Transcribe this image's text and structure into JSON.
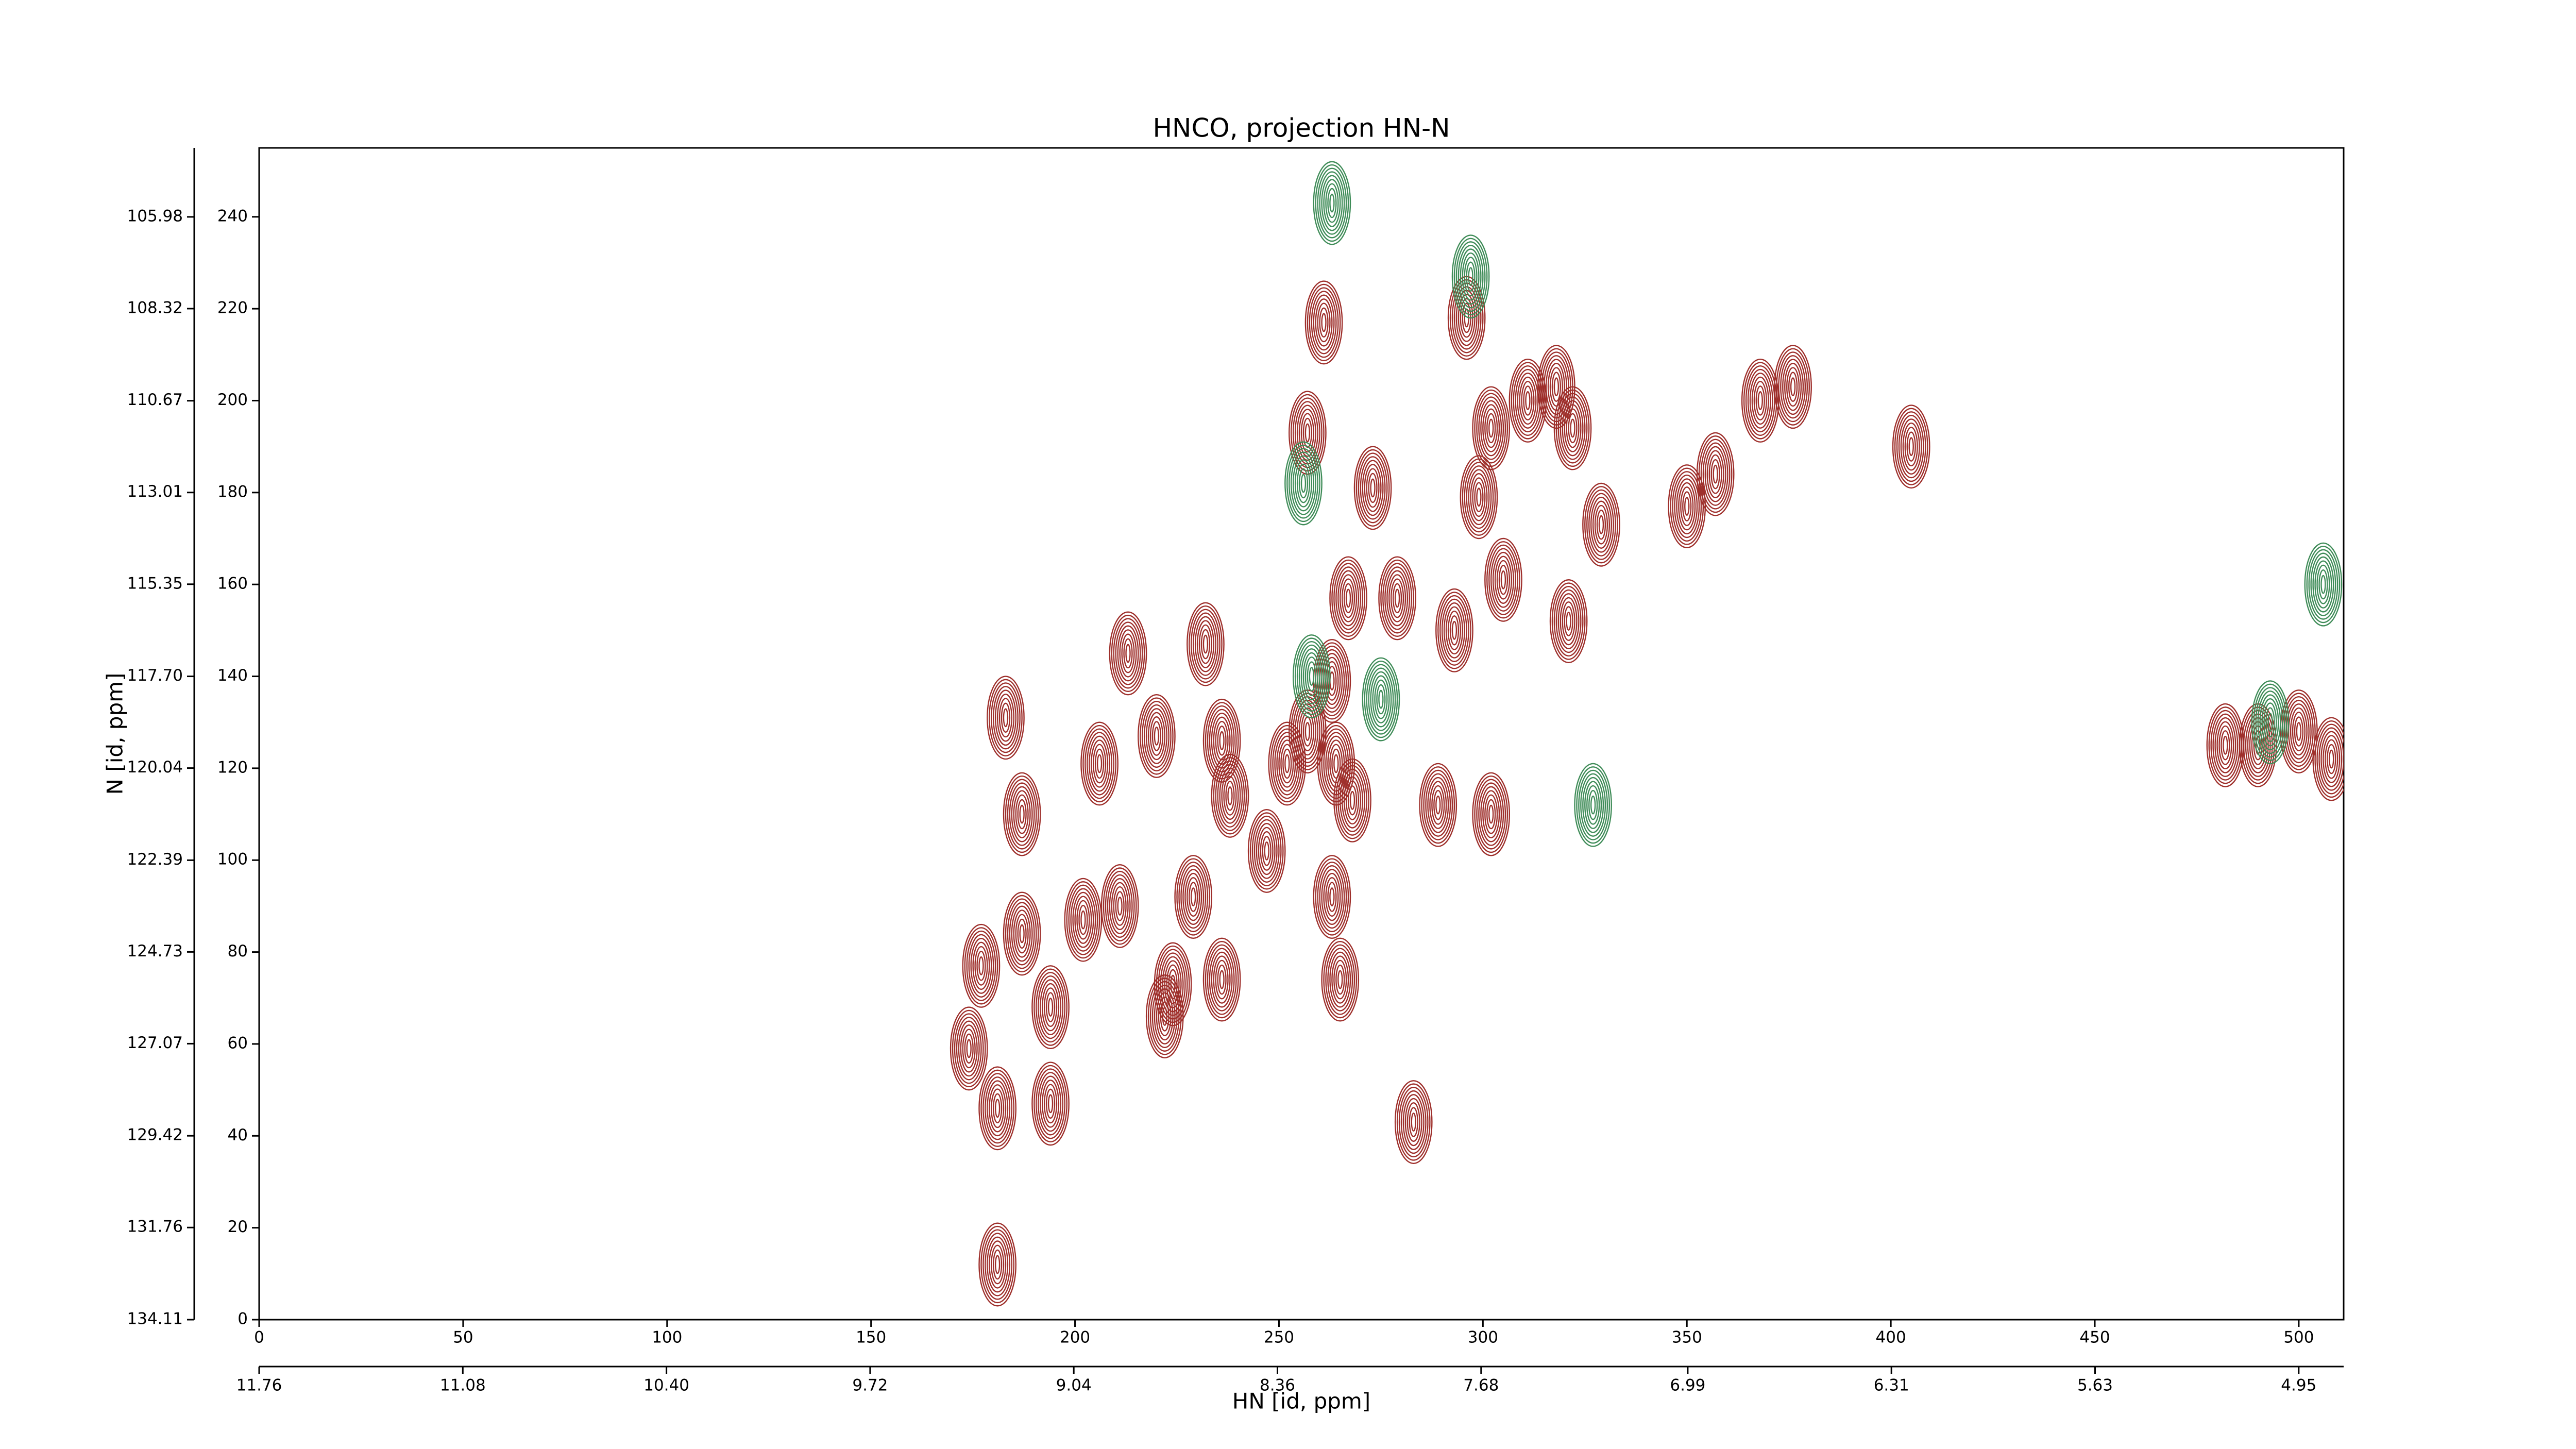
{
  "chart_data": {
    "type": "contour",
    "title": "HNCO, projection HN-N",
    "xlabel": "HN [id, ppm]",
    "ylabel": "N [id, ppm]",
    "xlim": [
      0,
      511
    ],
    "ylim": [
      0,
      255
    ],
    "xticks": [
      0,
      50,
      100,
      150,
      200,
      250,
      300,
      350,
      400,
      450,
      500
    ],
    "yticks": [
      0,
      20,
      40,
      60,
      80,
      100,
      120,
      140,
      160,
      180,
      200,
      220,
      240
    ],
    "x2lim": [
      11.76,
      4.8
    ],
    "x2ticks": [
      11.76,
      11.08,
      {
        "value": 10.4,
        "label": "10.40"
      },
      9.72,
      9.04,
      8.36,
      7.68,
      6.99,
      6.31,
      5.63,
      4.95
    ],
    "y2lim": [
      134.11,
      104.22
    ],
    "y2ticks": [
      134.11,
      131.76,
      129.42,
      127.07,
      124.73,
      122.39,
      120.04,
      {
        "value": 117.7,
        "label": "117.70"
      },
      115.35,
      113.01,
      110.67,
      108.32,
      105.98
    ],
    "series": [
      {
        "color": "#9e2f2b",
        "x": [
          261,
          296,
          257,
          302,
          311,
          318,
          322,
          368,
          376,
          405,
          273,
          299,
          329,
          350,
          357,
          267,
          279,
          305,
          321,
          293,
          213,
          232,
          263,
          183,
          206,
          220,
          236,
          252,
          257,
          264,
          268,
          289,
          302,
          187,
          238,
          247,
          187,
          202,
          211,
          229,
          263,
          177,
          194,
          224,
          236,
          265,
          174,
          222,
          181,
          194,
          283,
          181,
          508,
          500,
          490,
          482
        ],
        "y": [
          217,
          218,
          193,
          194,
          200,
          203,
          194,
          200,
          203,
          190,
          181,
          179,
          173,
          177,
          184,
          157,
          157,
          161,
          152,
          150,
          145,
          147,
          139,
          131,
          121,
          127,
          126,
          121,
          128,
          121,
          113,
          112,
          110,
          110,
          114,
          102,
          84,
          87,
          90,
          92,
          92,
          77,
          68,
          73,
          74,
          74,
          59,
          66,
          46,
          47,
          43,
          12,
          122,
          128,
          125,
          125
        ]
      },
      {
        "color": "#3f8c58",
        "x": [
          263,
          297,
          256,
          327,
          506,
          493,
          275,
          258
        ],
        "y": [
          243,
          227,
          182,
          112,
          160,
          130,
          135,
          140
        ]
      }
    ]
  }
}
